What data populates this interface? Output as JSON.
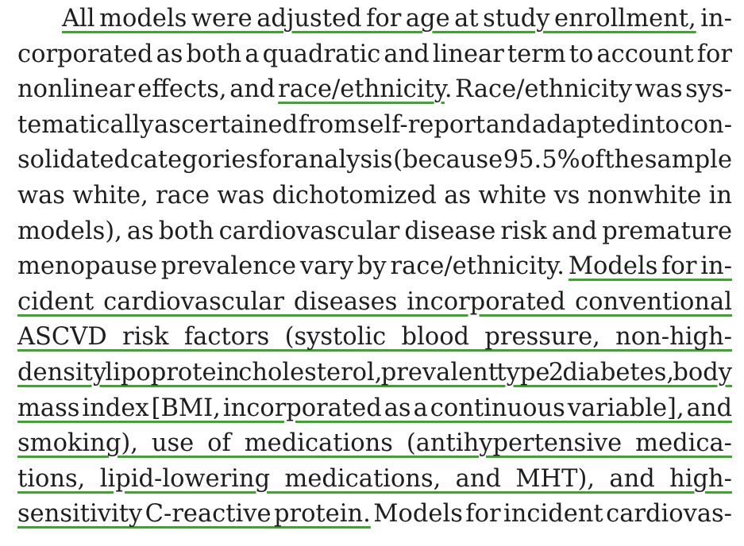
{
  "paragraph": {
    "lines": [
      {
        "segments": [
          {
            "text": "",
            "u": false
          },
          {
            "text": "All models were adjusted for age at study enrollment,",
            "u": true
          },
          {
            "text": " in-",
            "u": false
          }
        ],
        "indent": true
      },
      {
        "segments": [
          {
            "text": "corporated as both a quadratic and linear term to account for",
            "u": false
          }
        ]
      },
      {
        "segments": [
          {
            "text": "nonlinear effects, and ",
            "u": false
          },
          {
            "text": "race/ethnicity",
            "u": true
          },
          {
            "text": ". Race/ethnicity was sys-",
            "u": false
          }
        ]
      },
      {
        "segments": [
          {
            "text": "tematically ascertained from self-report and adapted into con-",
            "u": false
          }
        ]
      },
      {
        "segments": [
          {
            "text": "solidated categories for analysis (because 95.5% of the sample",
            "u": false
          }
        ]
      },
      {
        "segments": [
          {
            "text": "was white, race was dichotomized as white vs nonwhite in",
            "u": false
          }
        ]
      },
      {
        "segments": [
          {
            "text": "models), as both cardiovascular disease risk and premature",
            "u": false
          }
        ]
      },
      {
        "segments": [
          {
            "text": "menopause prevalence vary by race/ethnicity. ",
            "u": false
          },
          {
            "text": "Models for in-",
            "u": true
          }
        ]
      },
      {
        "segments": [
          {
            "text": "cident cardiovascular diseases incorporated conventional",
            "u": true
          }
        ]
      },
      {
        "segments": [
          {
            "text": "ASCVD risk factors (systolic blood pressure, non-high-",
            "u": true
          }
        ]
      },
      {
        "segments": [
          {
            "text": "density lipoprotein cholesterol, prevalent type 2 diabetes, body",
            "u": true
          }
        ]
      },
      {
        "segments": [
          {
            "text": "mass index [BMI, incorporated as a continuous variable], and",
            "u": true
          }
        ]
      },
      {
        "segments": [
          {
            "text": "smoking), use of medications (antihypertensive medica-",
            "u": true
          }
        ]
      },
      {
        "segments": [
          {
            "text": "tions, lipid-lowering medications, and MHT), and high-",
            "u": true
          }
        ]
      },
      {
        "segments": [
          {
            "text": "sensitivity C-reactive protein.",
            "u": true
          },
          {
            "text": " Models for incident cardiovas-",
            "u": false
          }
        ],
        "last": true
      }
    ]
  },
  "colors": {
    "text": "#1e1e1e",
    "underline": "#3aa62a",
    "background": "#ffffff"
  }
}
